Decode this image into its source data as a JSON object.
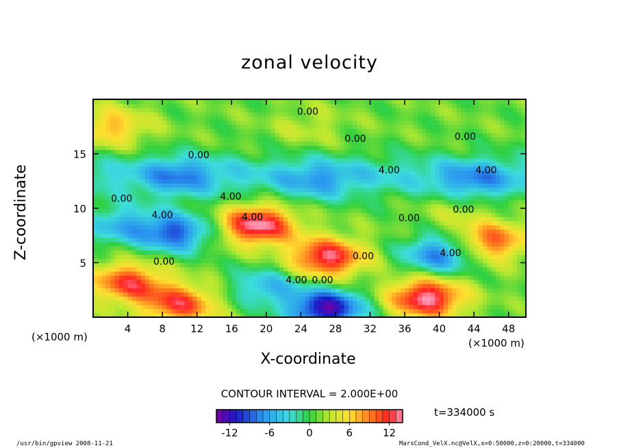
{
  "page": {
    "title": "zonal velocity",
    "contour_interval": "CONTOUR INTERVAL = 2.000E+00",
    "time_label": "t=334000  s",
    "footer_left": "/usr/bin/gpview   2008-11-21",
    "footer_right": "MarsCond_VelX.nc@VelX,x=0:50000,z=0:20000,t=334000"
  },
  "chart_data": {
    "type": "heatmap",
    "title": "zonal velocity",
    "xlabel": "X-coordinate",
    "ylabel": "Z-coordinate",
    "x_unit": "(×1000 m)",
    "y_unit": "(×1000 m)",
    "xlim": [
      0,
      50
    ],
    "ylim": [
      0,
      20
    ],
    "x_ticks": [
      4,
      8,
      12,
      16,
      20,
      24,
      28,
      32,
      36,
      40,
      44,
      48
    ],
    "y_ticks": [
      5,
      10,
      15
    ],
    "colorbar": {
      "range": [
        -14,
        14
      ],
      "ticks": [
        -12,
        -6,
        0,
        6,
        12
      ],
      "tick_labels": [
        "-12",
        "-6",
        "0",
        "6",
        "12"
      ]
    },
    "contour_labels": [
      {
        "x": 24.8,
        "z": 18.6,
        "text": "0.00"
      },
      {
        "x": 30.3,
        "z": 16.1,
        "text": "0.00"
      },
      {
        "x": 43.0,
        "z": 16.3,
        "text": "0.00"
      },
      {
        "x": 12.2,
        "z": 14.6,
        "text": "0.00"
      },
      {
        "x": 34.2,
        "z": 13.2,
        "text": "4.00"
      },
      {
        "x": 45.4,
        "z": 13.2,
        "text": "4.00"
      },
      {
        "x": 3.3,
        "z": 10.6,
        "text": "0.00"
      },
      {
        "x": 15.9,
        "z": 10.8,
        "text": "4.00"
      },
      {
        "x": 8.0,
        "z": 9.1,
        "text": "4.00"
      },
      {
        "x": 18.4,
        "z": 8.9,
        "text": "4.00"
      },
      {
        "x": 36.5,
        "z": 8.8,
        "text": "0.00"
      },
      {
        "x": 42.8,
        "z": 9.6,
        "text": "0.00"
      },
      {
        "x": 41.3,
        "z": 5.6,
        "text": "4.00"
      },
      {
        "x": 31.2,
        "z": 5.3,
        "text": "0.00"
      },
      {
        "x": 8.2,
        "z": 4.8,
        "text": "0.00"
      },
      {
        "x": 23.5,
        "z": 3.1,
        "text": "4.00"
      },
      {
        "x": 26.5,
        "z": 3.1,
        "text": "0.00"
      }
    ],
    "features": [
      {
        "x": 19,
        "z": 8.5,
        "value": 13
      },
      {
        "x": 27,
        "z": 5.5,
        "value": 12
      },
      {
        "x": 38.5,
        "z": 1.8,
        "value": 13
      },
      {
        "x": 4,
        "z": 3.2,
        "value": 10
      },
      {
        "x": 10,
        "z": 1.2,
        "value": 10
      },
      {
        "x": 46,
        "z": 7,
        "value": 9
      },
      {
        "x": 2,
        "z": 17.5,
        "value": 6
      },
      {
        "x": 9.5,
        "z": 7.8,
        "value": -10
      },
      {
        "x": 40,
        "z": 5.8,
        "value": -9
      },
      {
        "x": 27,
        "z": 0.8,
        "value": -14
      },
      {
        "x": 20,
        "z": 2.8,
        "value": -6
      },
      {
        "x": 10,
        "z": 13,
        "value": -5
      },
      {
        "x": 26,
        "z": 12.5,
        "value": -4
      },
      {
        "x": 44,
        "z": 12.5,
        "value": -5
      },
      {
        "x": 3,
        "z": 8.5,
        "value": -6
      },
      {
        "x": 25,
        "z": 17.5,
        "value": 2
      },
      {
        "x": 42,
        "z": 10,
        "value": 2
      }
    ]
  }
}
